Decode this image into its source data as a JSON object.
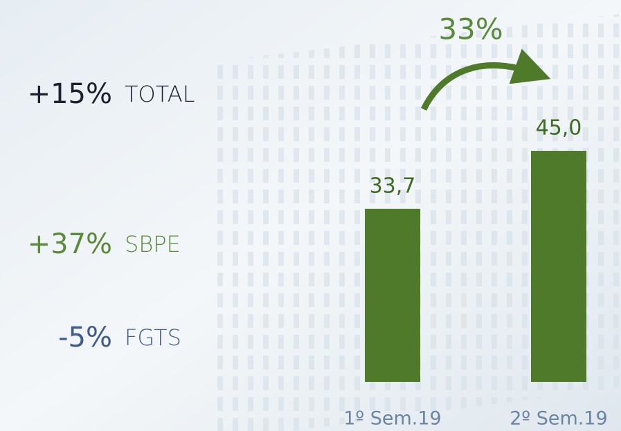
{
  "chart_data": {
    "type": "bar",
    "categories": [
      "1º Sem.19",
      "2º Sem.19"
    ],
    "values": [
      33.7,
      45.0
    ],
    "value_labels": [
      "33,7",
      "45,0"
    ],
    "color": "#4e7a2a",
    "annotation": "33%"
  },
  "highlights": [
    {
      "change": "+15%",
      "label": "TOTAL",
      "color": "#1c1f2e"
    },
    {
      "change": "+37%",
      "label": "SBPE",
      "color": "#5a8a3a"
    },
    {
      "change": "-5%",
      "label": "FGTS",
      "color": "#3e5c8c"
    }
  ]
}
